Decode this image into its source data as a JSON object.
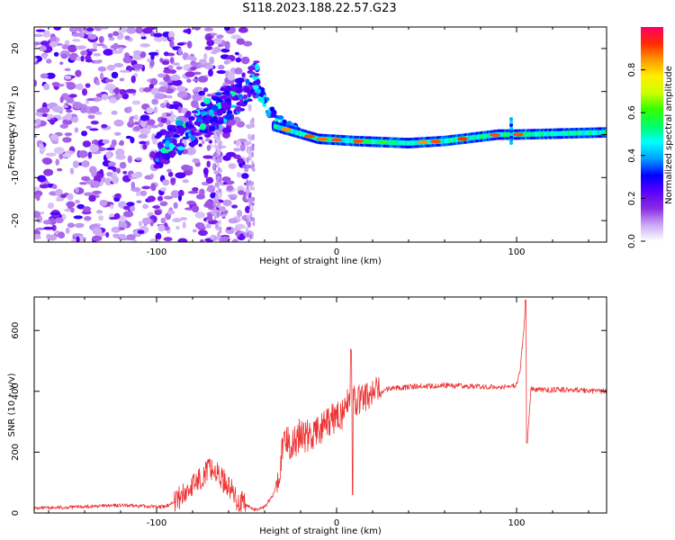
{
  "title": "S118.2023.188.22.57.G23",
  "colors": {
    "snr_line": "#ee3333",
    "colormap": [
      "#ffffff",
      "#c9a8f5",
      "#8a2be2",
      "#5a00ff",
      "#0000ff",
      "#00a0ff",
      "#00ffff",
      "#00ff66",
      "#33ff00",
      "#ccff00",
      "#ffee00",
      "#ff9900",
      "#ff2a00",
      "#ff0066"
    ]
  },
  "chart_data": [
    {
      "type": "heatmap",
      "name": "spectrogram",
      "xlabel": "Height of straight line (km)",
      "ylabel": "Frequency (Hz)",
      "xlim": [
        -168,
        150
      ],
      "ylim": [
        -25,
        25
      ],
      "xticks": [
        -100,
        0,
        100
      ],
      "yticks": [
        -20,
        -10,
        0,
        10,
        20
      ],
      "colorbar": {
        "label": "Normalized spectral amplitude",
        "range": [
          0,
          1
        ],
        "ticks": [
          "0.0",
          "0.2",
          "0.4",
          "0.6",
          "0.8"
        ]
      },
      "features": {
        "rising_track": {
          "x": [
            -100,
            -75,
            -55,
            -45
          ],
          "y": [
            -4,
            3,
            9,
            13
          ]
        },
        "descent": {
          "x": [
            -45,
            -38,
            -30,
            -20
          ],
          "y": [
            12,
            6,
            2,
            0
          ]
        },
        "flat_track": {
          "x": [
            -35,
            -10,
            10,
            40,
            60,
            90,
            100,
            150
          ],
          "y": [
            2,
            -1,
            -1.5,
            -2,
            -1.5,
            0,
            0,
            0.5
          ]
        },
        "spike_x": 97
      }
    },
    {
      "type": "line",
      "name": "snr",
      "xlabel": "Height of straight line (km)",
      "ylabel": "SNR (10 * v/v)",
      "xlim": [
        -168,
        150
      ],
      "ylim": [
        0,
        710
      ],
      "xticks": [
        -100,
        0,
        100
      ],
      "yticks": [
        0,
        200,
        400,
        600
      ],
      "series": [
        {
          "x": [
            -168,
            -120,
            -95,
            -85,
            -75,
            -70,
            -65,
            -60,
            -55,
            -45,
            -40,
            -35,
            -30,
            -28,
            -25,
            -20,
            -15,
            -10,
            -5,
            0,
            5,
            8,
            10,
            15,
            20,
            25,
            30,
            40,
            60,
            80,
            95,
            100,
            102,
            104,
            105,
            106,
            108,
            110,
            130,
            150
          ],
          "y": [
            15,
            25,
            20,
            60,
            120,
            150,
            120,
            90,
            40,
            10,
            20,
            60,
            200,
            250,
            220,
            260,
            250,
            270,
            290,
            320,
            330,
            420,
            360,
            380,
            390,
            400,
            410,
            415,
            420,
            415,
            415,
            420,
            470,
            600,
            700,
            240,
            410,
            405,
            405,
            400
          ]
        }
      ]
    }
  ]
}
